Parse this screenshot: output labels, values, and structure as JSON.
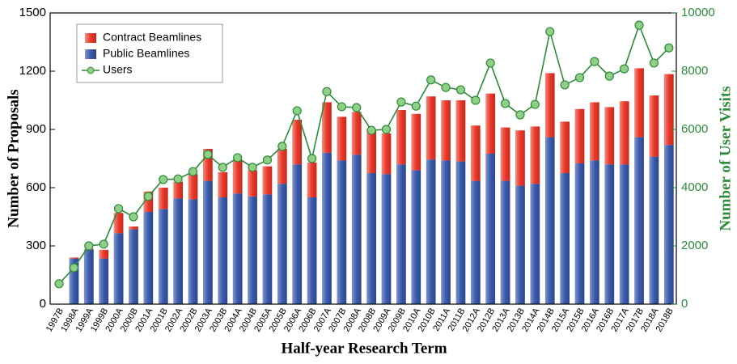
{
  "chart_data": {
    "type": "bar_line",
    "x_label": "Half-year Research Term",
    "y_label": "Number of Proposals",
    "y2_label": "Number of User Visits",
    "categories": [
      "1997B",
      "1998A",
      "1999A",
      "1999B",
      "2000A",
      "2000B",
      "2001A",
      "2001B",
      "2002A",
      "2002B",
      "2003A",
      "2003B",
      "2004A",
      "2004B",
      "2005A",
      "2005B",
      "2006A",
      "2006B",
      "2007A",
      "2007B",
      "2008A",
      "2008B",
      "2009A",
      "2009B",
      "2010A",
      "2010B",
      "2011A",
      "2011B",
      "2012A",
      "2012B",
      "2013A",
      "2013B",
      "2014A",
      "2014B",
      "2015A",
      "2015B",
      "2016A",
      "2016B",
      "2017A",
      "2017B",
      "2018A",
      "2018B"
    ],
    "series": [
      {
        "name": "Public Beamlines",
        "color": "#3b5ba9",
        "values": [
          0,
          235,
          280,
          235,
          365,
          385,
          475,
          490,
          545,
          540,
          635,
          550,
          570,
          555,
          565,
          620,
          720,
          550,
          780,
          740,
          770,
          675,
          670,
          720,
          690,
          745,
          740,
          735,
          635,
          775,
          635,
          610,
          620,
          860,
          675,
          725,
          740,
          720,
          720,
          860,
          760,
          820
        ]
      },
      {
        "name": "Contract Beamlines",
        "color": "#e8392b",
        "values": [
          0,
          5,
          5,
          45,
          105,
          15,
          105,
          110,
          85,
          130,
          165,
          130,
          170,
          135,
          145,
          180,
          230,
          180,
          260,
          225,
          220,
          225,
          210,
          280,
          290,
          325,
          310,
          315,
          285,
          310,
          275,
          285,
          295,
          330,
          265,
          280,
          300,
          295,
          325,
          355,
          315,
          365
        ]
      },
      {
        "name": "Users",
        "color": "#2e8b3a",
        "axis": "y2",
        "values": [
          700,
          1250,
          2000,
          2060,
          3280,
          3000,
          3700,
          4280,
          4300,
          4550,
          5140,
          4700,
          5030,
          4700,
          4950,
          5420,
          6640,
          5000,
          7300,
          6780,
          6750,
          5970,
          6000,
          6940,
          6800,
          7700,
          7440,
          7360,
          7000,
          8280,
          6890,
          6500,
          6860,
          9360,
          7530,
          7780,
          8330,
          7830,
          8080,
          9580,
          8280,
          8800
        ]
      }
    ],
    "ylim": [
      0,
      1500
    ],
    "yticks": [
      0,
      300,
      600,
      900,
      1200,
      1500
    ],
    "y2lim": [
      0,
      10000
    ],
    "y2ticks": [
      0,
      2000,
      4000,
      6000,
      8000,
      10000
    ],
    "legend": "upper left"
  }
}
